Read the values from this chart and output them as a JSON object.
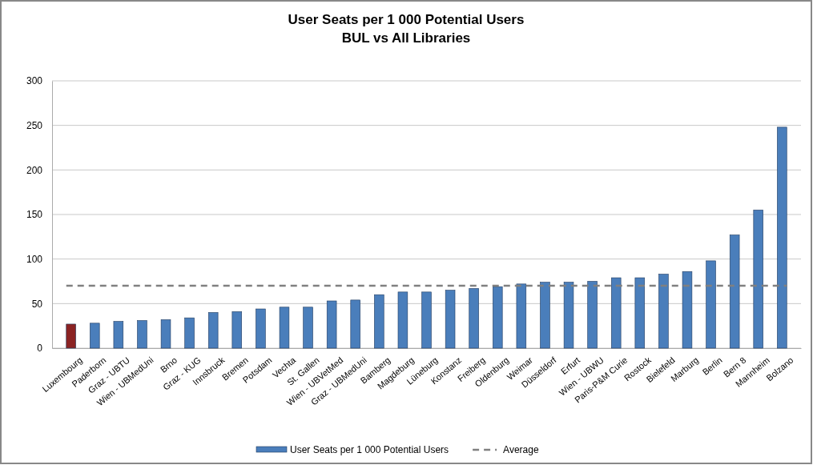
{
  "chart_data": {
    "type": "bar",
    "title": "User Seats per 1 000 Potential Users",
    "subtitle": "BUL vs All Libraries",
    "categories": [
      "Luxembourg",
      "Paderborn",
      "Graz - UBTU",
      "Wien - UBMedUni",
      "Brno",
      "Graz - KUG",
      "Innsbruck",
      "Bremen",
      "Potsdam",
      "Vechta",
      "St. Gallen",
      "Wien - UBVetMed",
      "Graz - UBMedUni",
      "Bamberg",
      "Magdeburg",
      "Lüneburg",
      "Konstanz",
      "Freiberg",
      "Oldenburg",
      "Weimar",
      "Düsseldorf",
      "Erfurt",
      "Wien - UBWU",
      "Paris-P&M Curie",
      "Rostock",
      "Bielefeld",
      "Marburg",
      "Berlin",
      "Bern 8",
      "Mannheim",
      "Bolzano"
    ],
    "series": [
      {
        "name": "User Seats per 1 000 Potential Users",
        "color": "#4a7ebb",
        "colors": [
          "#8b2323",
          "#4a7ebb",
          "#4a7ebb",
          "#4a7ebb",
          "#4a7ebb",
          "#4a7ebb",
          "#4a7ebb",
          "#4a7ebb",
          "#4a7ebb",
          "#4a7ebb",
          "#4a7ebb",
          "#4a7ebb",
          "#4a7ebb",
          "#4a7ebb",
          "#4a7ebb",
          "#4a7ebb",
          "#4a7ebb",
          "#4a7ebb",
          "#4a7ebb",
          "#4a7ebb",
          "#4a7ebb",
          "#4a7ebb",
          "#4a7ebb",
          "#4a7ebb",
          "#4a7ebb",
          "#4a7ebb",
          "#4a7ebb",
          "#4a7ebb",
          "#4a7ebb",
          "#4a7ebb",
          "#4a7ebb"
        ],
        "values": [
          27,
          28,
          30,
          31,
          32,
          34,
          40,
          41,
          44,
          46,
          46,
          53,
          54,
          60,
          63,
          63,
          65,
          67,
          69,
          72,
          74,
          74,
          75,
          79,
          79,
          83,
          86,
          98,
          127,
          155,
          248
        ]
      }
    ],
    "ref_lines": [
      {
        "axis": "y",
        "value": 70,
        "label": "Average",
        "color": "#808080",
        "line_style": "dashed"
      }
    ],
    "ylim": [
      0,
      300
    ],
    "yticks": [
      0,
      50,
      100,
      150,
      200,
      250,
      300
    ],
    "grid": "y",
    "legend": "bottom"
  }
}
